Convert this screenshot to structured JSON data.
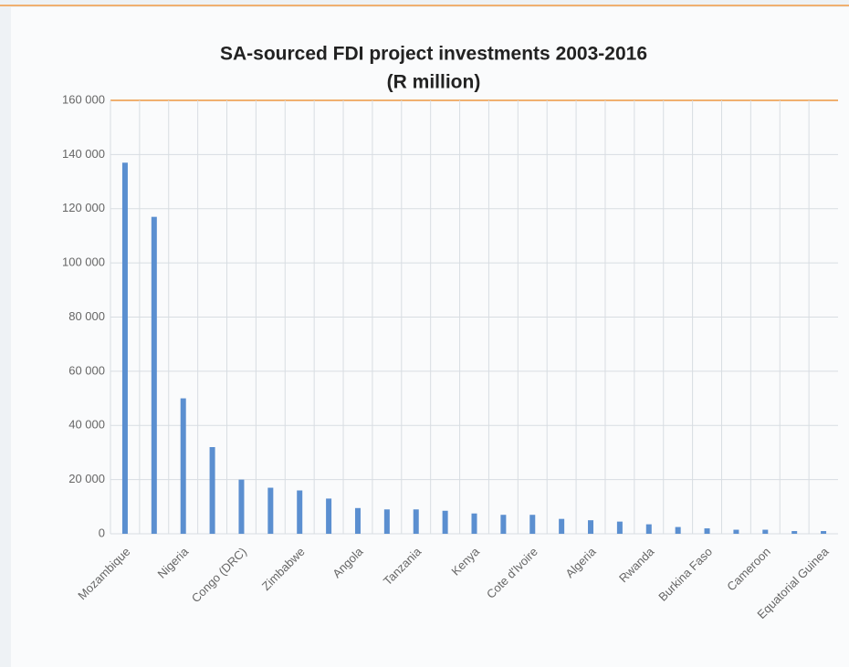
{
  "chart_data": {
    "type": "bar",
    "title": "SA-sourced FDI project investments 2003-2016",
    "subtitle": "(R million)",
    "categories": [
      "Mozambique",
      null,
      "Nigeria",
      null,
      "Congo (DRC)",
      null,
      "Zimbabwe",
      null,
      "Angola",
      null,
      "Tanzania",
      null,
      "Kenya",
      null,
      "Cote d'Ivoire",
      null,
      "Algeria",
      null,
      "Rwanda",
      null,
      "Burkina Faso",
      null,
      "Cameroon",
      null,
      "Equatorial Guinea"
    ],
    "values": [
      137000,
      117000,
      50000,
      32000,
      20000,
      17000,
      16000,
      13000,
      9500,
      9000,
      9000,
      8500,
      7500,
      7000,
      7000,
      5500,
      5000,
      4500,
      3500,
      2500,
      2000,
      1500,
      1500,
      1000,
      1000
    ],
    "color": "#5b8fd0",
    "ylim": [
      0,
      160000
    ],
    "yticks": [
      0,
      {
        "value": 20000,
        "label": "20 000"
      },
      {
        "value": 40000,
        "label": "40 000"
      },
      {
        "value": 60000,
        "label": "60 000"
      },
      {
        "value": 80000,
        "label": "80 000"
      },
      {
        "value": 100000,
        "label": "100 000"
      },
      {
        "value": 120000,
        "label": "120 000"
      },
      {
        "value": 140000,
        "label": "140 000"
      },
      {
        "value": 160000,
        "label": "160 000"
      }
    ],
    "grid": true
  }
}
